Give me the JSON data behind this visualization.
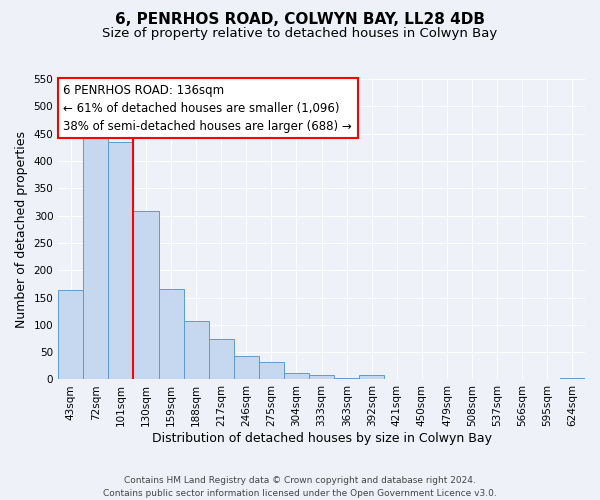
{
  "title": "6, PENRHOS ROAD, COLWYN BAY, LL28 4DB",
  "subtitle": "Size of property relative to detached houses in Colwyn Bay",
  "xlabel": "Distribution of detached houses by size in Colwyn Bay",
  "ylabel": "Number of detached properties",
  "bar_labels": [
    "43sqm",
    "72sqm",
    "101sqm",
    "130sqm",
    "159sqm",
    "188sqm",
    "217sqm",
    "246sqm",
    "275sqm",
    "304sqm",
    "333sqm",
    "363sqm",
    "392sqm",
    "421sqm",
    "450sqm",
    "479sqm",
    "508sqm",
    "537sqm",
    "566sqm",
    "595sqm",
    "624sqm"
  ],
  "bar_values": [
    163,
    450,
    435,
    308,
    165,
    107,
    74,
    43,
    32,
    11,
    9,
    2,
    9,
    0,
    0,
    0,
    0,
    0,
    0,
    0,
    2
  ],
  "bar_color": "#c5d8f0",
  "bar_edge_color": "#5b9bd5",
  "vline_x": 3,
  "vline_color": "red",
  "ylim": [
    0,
    550
  ],
  "yticks": [
    0,
    50,
    100,
    150,
    200,
    250,
    300,
    350,
    400,
    450,
    500,
    550
  ],
  "annotation_title": "6 PENRHOS ROAD: 136sqm",
  "annotation_line1": "← 61% of detached houses are smaller (1,096)",
  "annotation_line2": "38% of semi-detached houses are larger (688) →",
  "annotation_box_color": "red",
  "footer_line1": "Contains HM Land Registry data © Crown copyright and database right 2024.",
  "footer_line2": "Contains public sector information licensed under the Open Government Licence v3.0.",
  "bg_color": "#eef2f8",
  "grid_color": "#ffffff",
  "title_fontsize": 11,
  "subtitle_fontsize": 9.5,
  "axis_label_fontsize": 9,
  "tick_fontsize": 7.5,
  "footer_fontsize": 6.5,
  "annotation_fontsize": 8.5
}
